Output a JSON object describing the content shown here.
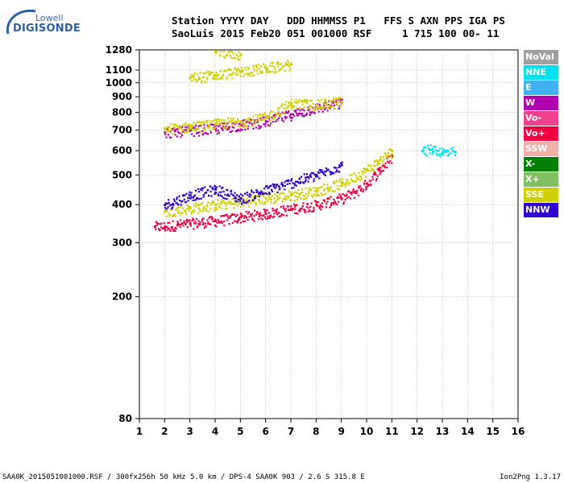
{
  "logo": {
    "line1": "Lowell",
    "line2": "DIGISONDE"
  },
  "header": {
    "line1": "Station YYYY DAY   DDD HHMMSS P1   FFS S AXN PPS IGA PS",
    "line2": "SaoLuis 2015 Feb20 051 001000 RSF     1 715 100 00- 11"
  },
  "legend": [
    {
      "label": "NoVal",
      "color": "#a0a0a0"
    },
    {
      "label": "NNE",
      "color": "#00e0f0"
    },
    {
      "label": "E",
      "color": "#40b0f0"
    },
    {
      "label": "W",
      "color": "#b000b0"
    },
    {
      "label": "Vo-",
      "color": "#f04090"
    },
    {
      "label": "Vo+",
      "color": "#f00040"
    },
    {
      "label": "SSW",
      "color": "#f0b0a8"
    },
    {
      "label": "X-",
      "color": "#008000"
    },
    {
      "label": "X+",
      "color": "#80c060"
    },
    {
      "label": "SSE",
      "color": "#d0d000"
    },
    {
      "label": "NNW",
      "color": "#3000d0"
    }
  ],
  "footer": {
    "left": "SAA0K_2015051001000.RSF / 300fx256h 50 kHz 5.0 km / DPS-4 SAA0K 903 / 2.6 S 315.8 E",
    "right": "Ion2Png 1.3.17"
  },
  "chart_data": {
    "type": "scatter",
    "xlabel": "",
    "ylabel": "",
    "xlim": [
      1,
      16
    ],
    "xticks": [
      1,
      2,
      3,
      4,
      5,
      6,
      7,
      8,
      9,
      10,
      11,
      12,
      13,
      14,
      15,
      16
    ],
    "ylim": [
      80,
      1280
    ],
    "yscale": "log",
    "yticks": [
      80,
      200,
      300,
      400,
      500,
      600,
      700,
      800,
      900,
      1000,
      1100,
      1280
    ],
    "grid": true,
    "legend_position": "right",
    "series": [
      {
        "name": "Vo+",
        "color": "#f00040",
        "trace": [
          [
            1.6,
            340
          ],
          [
            2,
            340
          ],
          [
            2.5,
            345
          ],
          [
            3,
            348
          ],
          [
            4,
            355
          ],
          [
            5,
            365
          ],
          [
            6,
            375
          ],
          [
            7,
            388
          ],
          [
            8,
            400
          ],
          [
            9,
            420
          ],
          [
            9.5,
            440
          ],
          [
            10,
            470
          ],
          [
            10.5,
            520
          ],
          [
            11,
            575
          ]
        ]
      },
      {
        "name": "SSE",
        "color": "#d0d000",
        "trace": [
          [
            2,
            380
          ],
          [
            3,
            390
          ],
          [
            4,
            400
          ],
          [
            5,
            410
          ],
          [
            6,
            420
          ],
          [
            7,
            430
          ],
          [
            8,
            445
          ],
          [
            9,
            470
          ],
          [
            10,
            520
          ],
          [
            10.5,
            560
          ],
          [
            11,
            600
          ]
        ]
      },
      {
        "name": "NNW",
        "color": "#3000d0",
        "trace": [
          [
            2,
            400
          ],
          [
            3,
            430
          ],
          [
            4,
            450
          ],
          [
            5,
            420
          ],
          [
            8,
            500
          ],
          [
            9,
            540
          ]
        ]
      },
      {
        "name": "W",
        "color": "#b000b0",
        "trace": [
          [
            2,
            690
          ],
          [
            3,
            700
          ],
          [
            4,
            710
          ],
          [
            5,
            730
          ],
          [
            6,
            750
          ],
          [
            7,
            790
          ],
          [
            8,
            830
          ],
          [
            9,
            860
          ]
        ]
      },
      {
        "name": "SSE",
        "color": "#d0d000",
        "trace": [
          [
            2,
            710
          ],
          [
            3,
            720
          ],
          [
            4,
            735
          ],
          [
            5,
            750
          ],
          [
            6,
            770
          ],
          [
            7,
            860
          ],
          [
            8,
            850
          ],
          [
            9,
            870
          ]
        ]
      },
      {
        "name": "SSE",
        "color": "#d0d000",
        "trace": [
          [
            3,
            1040
          ],
          [
            4,
            1060
          ],
          [
            5,
            1090
          ],
          [
            6,
            1120
          ],
          [
            7,
            1150
          ],
          [
            4,
            1270
          ],
          [
            5,
            1240
          ]
        ]
      },
      {
        "name": "NNE",
        "color": "#00e0f0",
        "trace": [
          [
            12.2,
            600
          ],
          [
            12.6,
            610
          ],
          [
            13,
            595
          ],
          [
            13.5,
            595
          ]
        ]
      }
    ]
  }
}
